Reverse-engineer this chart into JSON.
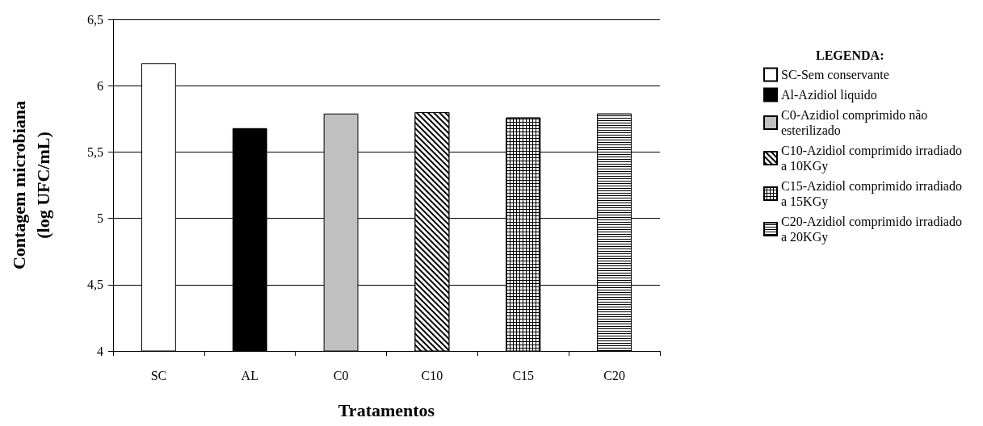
{
  "chart_data": {
    "type": "bar",
    "xlabel": "Tratamentos",
    "ylabel": "Contagem microbiana\n(log UFC/mL)",
    "legend_title": "LEGENDA:",
    "categories": [
      "SC",
      "AL",
      "C0",
      "C10",
      "C15",
      "C20"
    ],
    "series": [
      {
        "name": "SC-Sem conservante",
        "color": "#ffffff",
        "values": [
          6.17,
          null,
          null,
          null,
          null,
          null
        ]
      },
      {
        "name": "Al-Azidiol liquido",
        "color": "#000000",
        "values": [
          null,
          5.68,
          null,
          null,
          null,
          null
        ]
      },
      {
        "name": "C0-Azidiol comprimido não esterilizado",
        "color": "#c0c0c0",
        "values": [
          null,
          null,
          5.79,
          null,
          null,
          null
        ]
      },
      {
        "name": "C10-Azidiol comprimido irradiado a 10KGy",
        "color": "#000000",
        "values": [
          null,
          null,
          null,
          5.8,
          null,
          null
        ]
      },
      {
        "name": "C15-Azidiol comprimido irradiado a 15KGy",
        "color": "#000000",
        "values": [
          null,
          null,
          null,
          null,
          5.76,
          null
        ]
      },
      {
        "name": "C20-Azidiol comprimido irradiado a 20KGy",
        "color": "#000000",
        "values": [
          null,
          null,
          null,
          null,
          null,
          5.79
        ]
      }
    ],
    "ylim": [
      4,
      6.5
    ],
    "yticks": [
      4,
      {
        "value": 4.5,
        "label": "4,5"
      },
      5,
      {
        "value": 5.5,
        "label": "5,5"
      },
      6,
      {
        "value": 6.5,
        "label": "6,5"
      }
    ],
    "grid": "y",
    "legend": "right"
  }
}
